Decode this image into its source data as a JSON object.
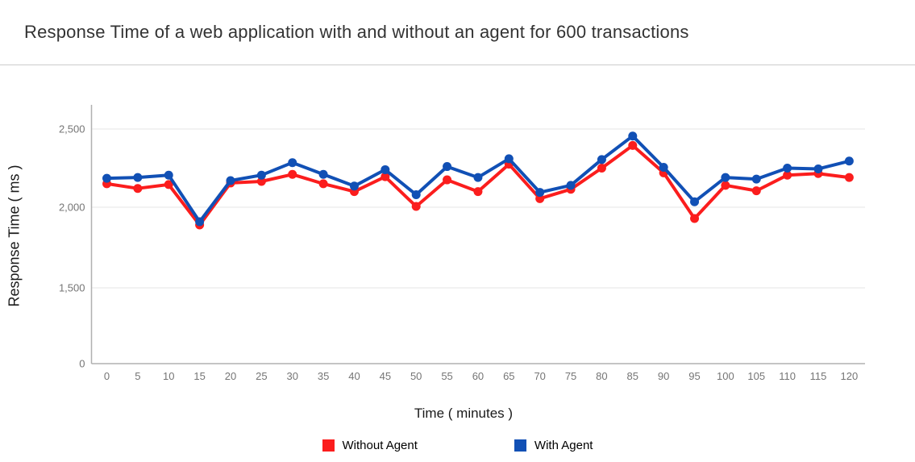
{
  "title": "Response Time of a web application with and without an agent for 600 transactions",
  "chart_data": {
    "type": "line",
    "title": "Response Time of a web application with and without an agent for 600 transactions",
    "xlabel": "Time ( minutes )",
    "ylabel": "Response Time ( ms )",
    "x": [
      0,
      5,
      10,
      15,
      20,
      25,
      30,
      35,
      40,
      45,
      50,
      55,
      60,
      65,
      70,
      75,
      80,
      85,
      90,
      95,
      100,
      105,
      110,
      115,
      120
    ],
    "x_tick_labels": [
      "0",
      "5",
      "10",
      "15",
      "20",
      "25",
      "30",
      "35",
      "40",
      "45",
      "50",
      "55",
      "60",
      "65",
      "70",
      "75",
      "80",
      "85",
      "90",
      "95",
      "100",
      "105",
      "110",
      "115",
      "120"
    ],
    "y_ticks": [
      0,
      1500,
      2000,
      2500
    ],
    "y_tick_labels": [
      "0",
      "1,500",
      "2,000",
      "2,500"
    ],
    "y_axis_note": "ticks 0/1500/2000/2500 are evenly spaced (non-linear axis)",
    "grid": true,
    "legend_position": "bottom",
    "series": [
      {
        "name": "Without Agent",
        "color": "#fb1d1d",
        "values": [
          2150,
          2120,
          2145,
          1890,
          2155,
          2165,
          2210,
          2150,
          2100,
          2195,
          2005,
          2175,
          2100,
          2275,
          2055,
          2115,
          2250,
          2395,
          2220,
          1930,
          2140,
          2105,
          2205,
          2215,
          2190
        ]
      },
      {
        "name": "With Agent",
        "color": "#1150b5",
        "values": [
          2185,
          2190,
          2205,
          1910,
          2170,
          2205,
          2285,
          2210,
          2135,
          2240,
          2080,
          2260,
          2190,
          2310,
          2095,
          2140,
          2305,
          2455,
          2255,
          2035,
          2190,
          2180,
          2250,
          2245,
          2295
        ]
      }
    ],
    "axis_colors": {
      "gridline": "#e6e6e6",
      "axis_line": "#b0b0b0",
      "tick_label": "#757575"
    }
  },
  "legend": {
    "items": [
      {
        "label": "Without Agent",
        "color": "#fb1d1d"
      },
      {
        "label": "With Agent",
        "color": "#1150b5"
      }
    ]
  }
}
